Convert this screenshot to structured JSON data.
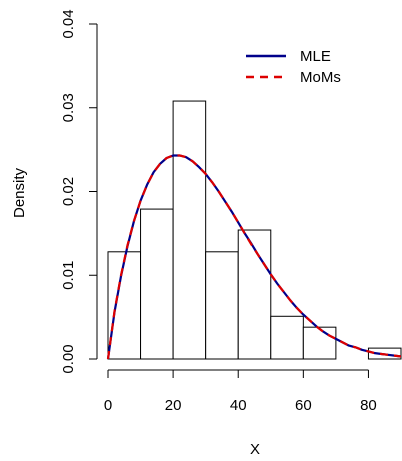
{
  "chart_data": {
    "type": "bar",
    "subtype": "histogram-with-density-curves",
    "xlabel": "X",
    "ylabel": "Density",
    "xlim": [
      0,
      90
    ],
    "ylim": [
      0,
      0.04
    ],
    "x_ticks": [
      0,
      20,
      40,
      60,
      80
    ],
    "x_tick_labels": [
      "0",
      "20",
      "40",
      "60",
      "80"
    ],
    "y_ticks": [
      0,
      0.01,
      0.02,
      0.03,
      0.04
    ],
    "y_tick_labels": [
      "0.00",
      "0.01",
      "0.02",
      "0.03",
      "0.04"
    ],
    "bins": [
      {
        "start": 0,
        "end": 10,
        "density": 0.0128
      },
      {
        "start": 10,
        "end": 20,
        "density": 0.0179
      },
      {
        "start": 20,
        "end": 30,
        "density": 0.0308
      },
      {
        "start": 30,
        "end": 40,
        "density": 0.0128
      },
      {
        "start": 40,
        "end": 50,
        "density": 0.0154
      },
      {
        "start": 50,
        "end": 60,
        "density": 0.0051
      },
      {
        "start": 60,
        "end": 70,
        "density": 0.0038
      },
      {
        "start": 70,
        "end": 80,
        "density": 0.0
      },
      {
        "start": 80,
        "end": 90,
        "density": 0.0013
      }
    ],
    "series": [
      {
        "name": "MLE",
        "color": "#00008B",
        "style": "solid",
        "x": [
          0,
          2,
          4,
          6,
          8,
          10,
          12,
          14,
          16,
          18,
          20,
          22,
          24,
          26,
          28,
          30,
          32,
          34,
          36,
          38,
          40,
          42,
          44,
          46,
          48,
          50,
          52,
          54,
          56,
          58,
          60,
          62,
          64,
          66,
          68,
          70,
          72,
          74,
          76,
          78,
          80,
          82,
          84,
          86,
          88,
          90
        ],
        "y": [
          0.0,
          0.0056,
          0.0099,
          0.0135,
          0.0165,
          0.0189,
          0.0208,
          0.0223,
          0.0233,
          0.024,
          0.0243,
          0.0243,
          0.0241,
          0.0236,
          0.0229,
          0.0221,
          0.0211,
          0.02,
          0.0188,
          0.0176,
          0.0163,
          0.015,
          0.0138,
          0.0125,
          0.0113,
          0.0101,
          0.009,
          0.008,
          0.007,
          0.0061,
          0.0053,
          0.0046,
          0.0039,
          0.0033,
          0.0028,
          0.0024,
          0.002,
          0.0016,
          0.0014,
          0.0011,
          0.0009,
          0.0007,
          0.0006,
          0.0005,
          0.0004,
          0.0003
        ]
      },
      {
        "name": "MoMs",
        "color": "#DD0000",
        "style": "dashed",
        "x": [
          0,
          2,
          4,
          6,
          8,
          10,
          12,
          14,
          16,
          18,
          20,
          22,
          24,
          26,
          28,
          30,
          32,
          34,
          36,
          38,
          40,
          42,
          44,
          46,
          48,
          50,
          52,
          54,
          56,
          58,
          60,
          62,
          64,
          66,
          68,
          70,
          72,
          74,
          76,
          78,
          80,
          82,
          84,
          86,
          88,
          90
        ],
        "y": [
          0.0,
          0.0057,
          0.01,
          0.0136,
          0.0165,
          0.0189,
          0.0208,
          0.0223,
          0.0233,
          0.024,
          0.0243,
          0.0243,
          0.0241,
          0.0236,
          0.0229,
          0.0221,
          0.0211,
          0.02,
          0.0188,
          0.0176,
          0.0163,
          0.015,
          0.0137,
          0.0125,
          0.0113,
          0.0101,
          0.009,
          0.008,
          0.007,
          0.0061,
          0.0053,
          0.0046,
          0.0039,
          0.0033,
          0.0028,
          0.0024,
          0.002,
          0.0016,
          0.0014,
          0.0011,
          0.0009,
          0.0007,
          0.0006,
          0.0005,
          0.0004,
          0.0003
        ]
      }
    ],
    "legend": {
      "position": "top-right",
      "entries": [
        "MLE",
        "MoMs"
      ]
    },
    "grid": false
  }
}
